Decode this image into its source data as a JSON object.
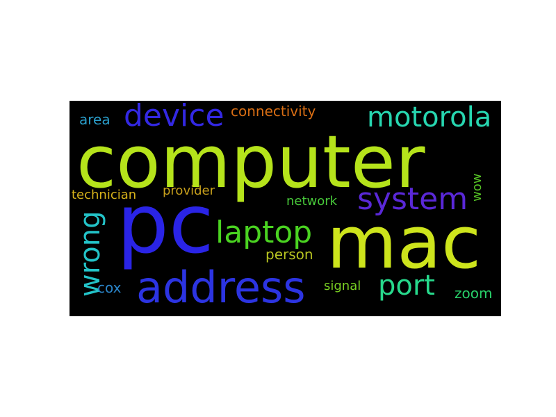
{
  "wordcloud": {
    "background": "#000000",
    "words": [
      {
        "text": "computer",
        "color": "#b5e31b"
      },
      {
        "text": "pc",
        "color": "#2a24e6"
      },
      {
        "text": "mac",
        "color": "#cde41c"
      },
      {
        "text": "address",
        "color": "#2c34e2"
      },
      {
        "text": "device",
        "color": "#3328e3"
      },
      {
        "text": "motorola",
        "color": "#27d6b0"
      },
      {
        "text": "system",
        "color": "#5a28d8"
      },
      {
        "text": "laptop",
        "color": "#4ad321"
      },
      {
        "text": "wrong",
        "color": "#23c3c8"
      },
      {
        "text": "port",
        "color": "#27d98c"
      },
      {
        "text": "connectivity",
        "color": "#d96e14"
      },
      {
        "text": "area",
        "color": "#2a9fcc"
      },
      {
        "text": "technician",
        "color": "#d6b21a"
      },
      {
        "text": "provider",
        "color": "#c8a01c"
      },
      {
        "text": "network",
        "color": "#48c93a"
      },
      {
        "text": "person",
        "color": "#b8c421"
      },
      {
        "text": "signal",
        "color": "#7ad123"
      },
      {
        "text": "zoom",
        "color": "#28d06a"
      },
      {
        "text": "cox",
        "color": "#2a84c8"
      },
      {
        "text": "wow",
        "color": "#55c125"
      }
    ]
  }
}
